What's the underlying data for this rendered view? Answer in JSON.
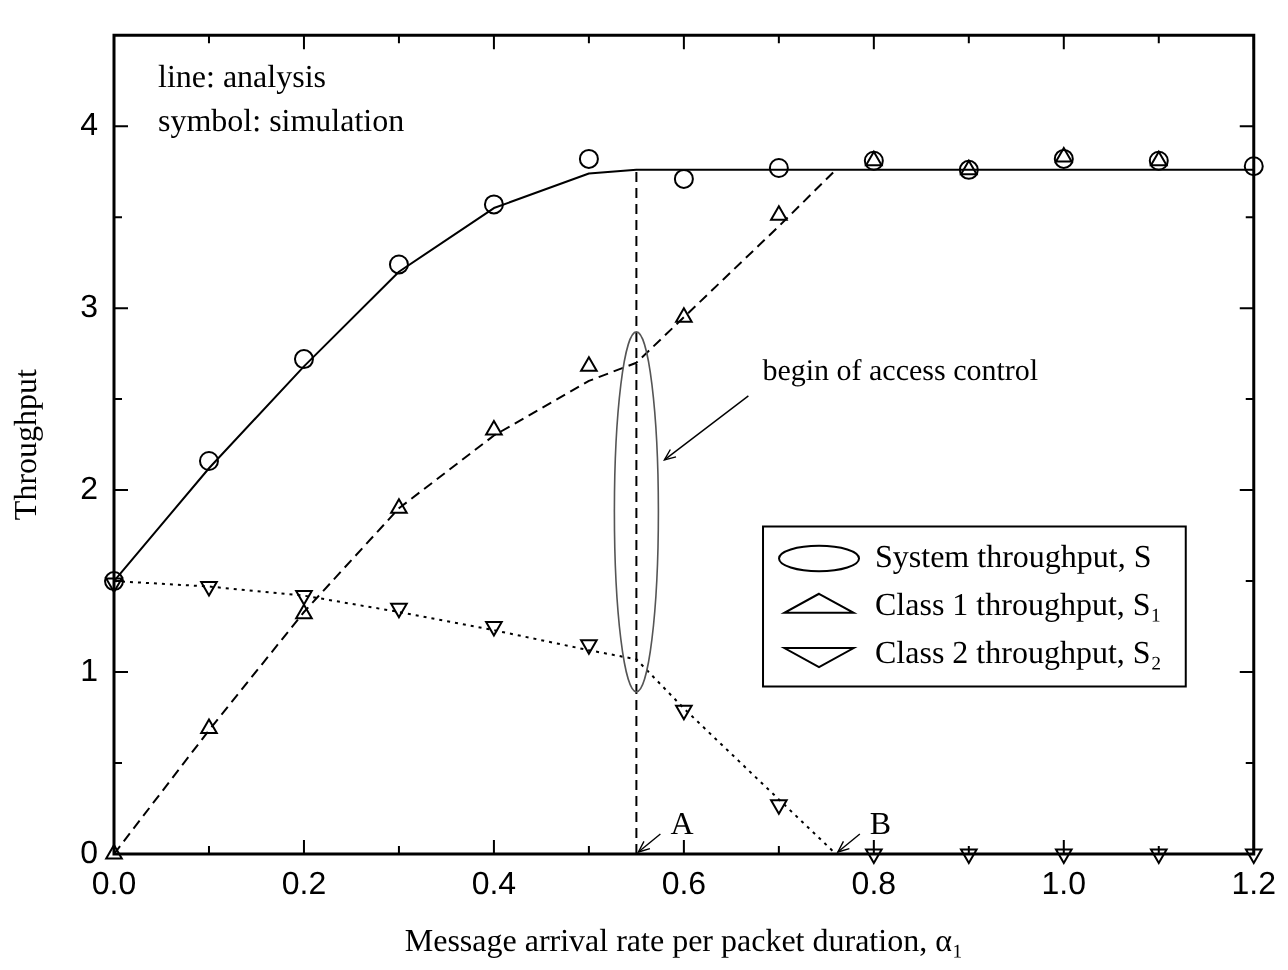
{
  "chart_data": {
    "type": "line",
    "xlabel": "Message arrival rate per packet duration, α₁",
    "ylabel": "Throughput",
    "xlim": [
      0,
      1.2
    ],
    "ylim": [
      0,
      4.5
    ],
    "xticks": [
      {
        "value": 0,
        "label": "0.0"
      },
      {
        "value": 0.1,
        "label": null
      },
      {
        "value": 0.2,
        "label": "0.2"
      },
      {
        "value": 0.3,
        "label": null
      },
      {
        "value": 0.4,
        "label": "0.4"
      },
      {
        "value": 0.5,
        "label": null
      },
      {
        "value": 0.6,
        "label": "0.6"
      },
      {
        "value": 0.7,
        "label": null
      },
      {
        "value": 0.8,
        "label": "0.8"
      },
      {
        "value": 0.9,
        "label": null
      },
      {
        "value": 1.0,
        "label": "1.0"
      },
      {
        "value": 1.1,
        "label": null
      },
      {
        "value": 1.2,
        "label": "1.2"
      }
    ],
    "yticks": [
      0,
      {
        "value": 0.5,
        "label": null
      },
      1,
      {
        "value": 1.5,
        "label": null
      },
      2,
      {
        "value": 2.5,
        "label": null
      },
      3,
      {
        "value": 3.5,
        "label": null
      },
      4
    ],
    "grid": false,
    "legend": "right",
    "series": [
      {
        "name": "System throughput, S",
        "color": "#000000",
        "line_style": "solid",
        "x": [
          0,
          0.1,
          0.2,
          0.3,
          0.4,
          0.5,
          0.55,
          1.2
        ],
        "values": [
          1.5,
          2.12,
          2.68,
          3.2,
          3.55,
          3.74,
          3.76,
          3.76
        ]
      },
      {
        "name": "Class 1 throughput, S₁",
        "color": "#000000",
        "line_style": "dashed",
        "x": [
          0,
          0.1,
          0.2,
          0.3,
          0.4,
          0.5,
          0.55,
          0.6,
          0.7,
          0.76
        ],
        "values": [
          0,
          0.68,
          1.33,
          1.9,
          2.3,
          2.6,
          2.7,
          2.95,
          3.45,
          3.76
        ]
      },
      {
        "name": "Class 2 throughput, S₂",
        "color": "#000000",
        "line_style": "dotted",
        "x": [
          0,
          0.1,
          0.2,
          0.3,
          0.4,
          0.5,
          0.55,
          0.6,
          0.7,
          0.76
        ],
        "values": [
          1.5,
          1.47,
          1.42,
          1.33,
          1.23,
          1.12,
          1.07,
          0.8,
          0.3,
          0
        ]
      },
      {
        "color": "#000000",
        "line_style": "dashed",
        "x": [
          0.55,
          0.55
        ],
        "values": [
          0,
          3.76
        ]
      },
      {
        "type": "scatter",
        "color": "#000000",
        "marker": "circle",
        "x": [
          0,
          0.1,
          0.2,
          0.3,
          0.4,
          0.5,
          0.6,
          0.7,
          0.8,
          0.9,
          1.0,
          1.1,
          1.2
        ],
        "values": [
          1.5,
          2.16,
          2.72,
          3.24,
          3.57,
          3.82,
          3.71,
          3.77,
          3.81,
          3.76,
          3.82,
          3.81,
          3.78
        ]
      },
      {
        "type": "scatter",
        "color": "#000000",
        "marker": "triangle",
        "x": [
          0,
          0.1,
          0.2,
          0.3,
          0.4,
          0.5,
          0.6,
          0.7,
          0.8,
          0.9,
          1.0,
          1.1
        ],
        "values": [
          0,
          0.69,
          1.32,
          1.9,
          2.33,
          2.68,
          2.95,
          3.51,
          3.81,
          3.76,
          3.83,
          3.81
        ]
      },
      {
        "type": "scatter",
        "color": "#000000",
        "marker": "triangle-down",
        "x": [
          0,
          0.1,
          0.2,
          0.3,
          0.4,
          0.5,
          0.6,
          0.7,
          0.8,
          0.9,
          1.0,
          1.1,
          1.2
        ],
        "values": [
          1.49,
          1.47,
          1.42,
          1.35,
          1.25,
          1.15,
          0.79,
          0.27,
          0,
          0,
          0,
          0,
          0
        ]
      }
    ],
    "annotations": [
      "line: analysis\nsymbol: simulation",
      "begin of access control",
      {
        "text": "A",
        "x": 0.55,
        "y": 0
      },
      {
        "text": "B",
        "x": 0.76,
        "y": 0
      }
    ]
  }
}
